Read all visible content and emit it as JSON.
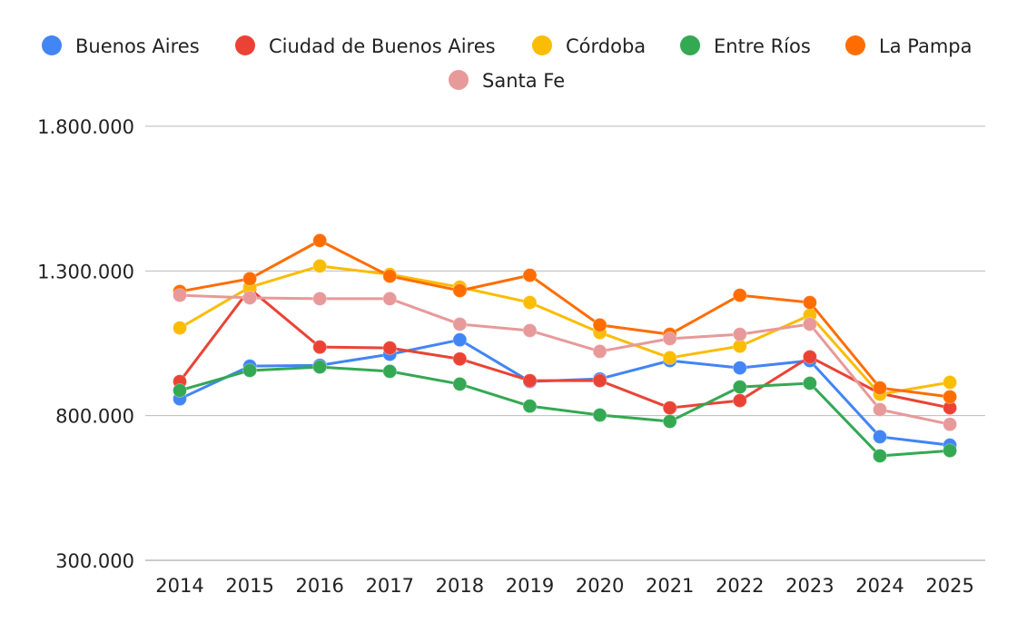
{
  "chart_data": {
    "type": "line",
    "title": "",
    "xlabel": "",
    "ylabel": "",
    "x": [
      "2014",
      "2015",
      "2016",
      "2017",
      "2018",
      "2019",
      "2020",
      "2021",
      "2022",
      "2023",
      "2024",
      "2025"
    ],
    "ylim": [
      300000,
      1800000
    ],
    "yticks": [
      300000,
      800000,
      1300000,
      1800000
    ],
    "ytick_labels": [
      "300.000",
      "800.000",
      "1.300.000",
      "1.800.000"
    ],
    "grid": true,
    "legend_position": "top",
    "series": [
      {
        "name": "Buenos Aires",
        "color": "#4285F4",
        "values": [
          858000,
          971000,
          974000,
          1012000,
          1062000,
          918000,
          927000,
          990000,
          965000,
          990000,
          727000,
          698000
        ]
      },
      {
        "name": "Ciudad de Buenos Aires",
        "color": "#EA4335",
        "values": [
          918000,
          1238000,
          1037000,
          1034000,
          996000,
          921000,
          921000,
          827000,
          852000,
          1003000,
          877000,
          827000
        ]
      },
      {
        "name": "Córdoba",
        "color": "#FBBC04",
        "values": [
          1103000,
          1244000,
          1317000,
          1288000,
          1244000,
          1191000,
          1087000,
          1000000,
          1040000,
          1147000,
          874000,
          915000
        ]
      },
      {
        "name": "Entre Ríos",
        "color": "#34A853",
        "values": [
          887000,
          956000,
          968000,
          953000,
          909000,
          833000,
          802000,
          780000,
          899000,
          912000,
          661000,
          679000
        ]
      },
      {
        "name": "La Pampa",
        "color": "#FF6D01",
        "values": [
          1229000,
          1273000,
          1405000,
          1282000,
          1232000,
          1285000,
          1113000,
          1081000,
          1216000,
          1191000,
          896000,
          865000
        ]
      },
      {
        "name": "Santa Fe",
        "color": "#E8999A",
        "values": [
          1216000,
          1207000,
          1204000,
          1204000,
          1116000,
          1094000,
          1022000,
          1066000,
          1081000,
          1116000,
          821000,
          770000
        ]
      }
    ]
  }
}
